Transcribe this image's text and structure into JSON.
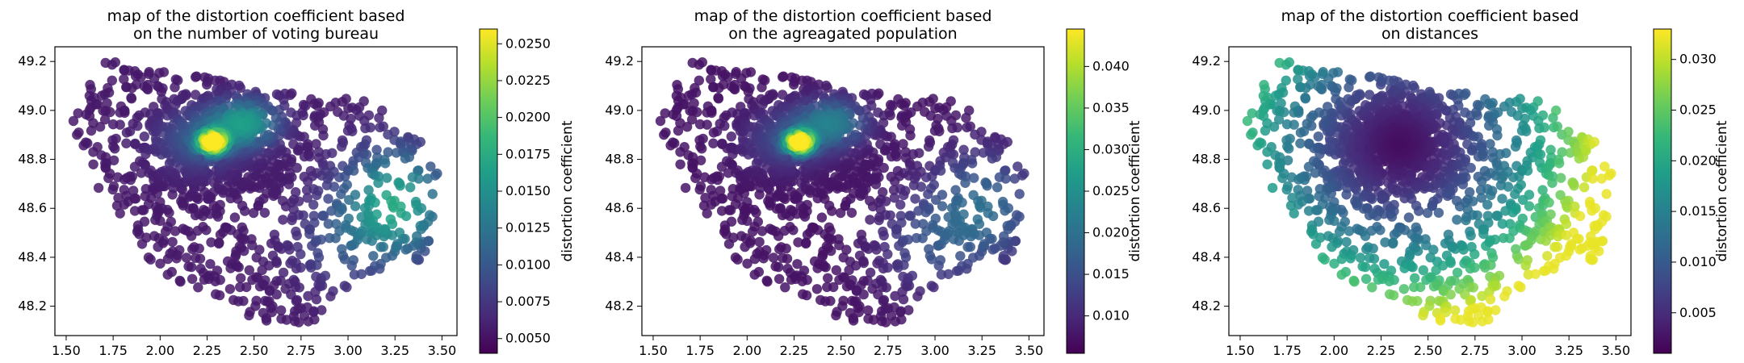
{
  "chart_data": [
    {
      "type": "scatter",
      "title": [
        "map of the distortion coefficient based",
        "on the number of voting bureau"
      ],
      "xlim": [
        1.44,
        3.58
      ],
      "ylim": [
        48.08,
        49.26
      ],
      "xticks": [
        "1.50",
        "1.75",
        "2.00",
        "2.25",
        "2.50",
        "2.75",
        "3.00",
        "3.25",
        "3.50"
      ],
      "yticks": [
        "48.2",
        "48.4",
        "48.6",
        "48.8",
        "49.0",
        "49.2"
      ],
      "colorbar": {
        "label": "distortion coefficient",
        "range": [
          0.004,
          0.026
        ],
        "ticks": [
          "0.0050",
          "0.0075",
          "0.0100",
          "0.0125",
          "0.0150",
          "0.0175",
          "0.0200",
          "0.0225",
          "0.0250"
        ]
      },
      "colormap": "viridis",
      "color_model": "density",
      "density_peaks": [
        {
          "x": 2.28,
          "y": 48.87,
          "value": 0.0255
        },
        {
          "x": 2.45,
          "y": 48.95,
          "value": 0.018
        }
      ],
      "east_cluster": {
        "x": 3.25,
        "y": 48.62,
        "value": 0.017
      }
    },
    {
      "type": "scatter",
      "title": [
        "map of the distortion coefficient based",
        "on the agreagated population"
      ],
      "xlim": [
        1.44,
        3.58
      ],
      "ylim": [
        48.08,
        49.26
      ],
      "xticks": [
        "1.50",
        "1.75",
        "2.00",
        "2.25",
        "2.50",
        "2.75",
        "3.00",
        "3.25",
        "3.50"
      ],
      "yticks": [
        "48.2",
        "48.4",
        "48.6",
        "48.8",
        "49.0",
        "49.2"
      ],
      "colorbar": {
        "label": "distortion coefficient",
        "range": [
          0.0055,
          0.0445
        ],
        "ticks": [
          "0.010",
          "0.015",
          "0.020",
          "0.025",
          "0.030",
          "0.035",
          "0.040"
        ]
      },
      "colormap": "viridis",
      "color_model": "population",
      "density_peaks": [
        {
          "x": 2.28,
          "y": 48.87,
          "value": 0.044
        },
        {
          "x": 2.45,
          "y": 48.95,
          "value": 0.025
        }
      ],
      "east_cluster": {
        "x": 3.25,
        "y": 48.6,
        "value": 0.019
      }
    },
    {
      "type": "scatter",
      "title": [
        "map of the distortion coefficient based",
        "on distances"
      ],
      "xlim": [
        1.44,
        3.58
      ],
      "ylim": [
        48.08,
        49.26
      ],
      "xticks": [
        "1.50",
        "1.75",
        "2.00",
        "2.25",
        "2.50",
        "2.75",
        "3.00",
        "3.25",
        "3.50"
      ],
      "yticks": [
        "48.2",
        "48.4",
        "48.6",
        "48.8",
        "49.0",
        "49.2"
      ],
      "colorbar": {
        "label": "distortion coefficient",
        "range": [
          0.001,
          0.033
        ],
        "ticks": [
          "0.005",
          "0.010",
          "0.015",
          "0.020",
          "0.025",
          "0.030"
        ]
      },
      "colormap": "viridis",
      "color_model": "distance",
      "center": {
        "x": 2.35,
        "y": 48.86,
        "value": 0.002
      },
      "max_value": 0.032
    }
  ]
}
